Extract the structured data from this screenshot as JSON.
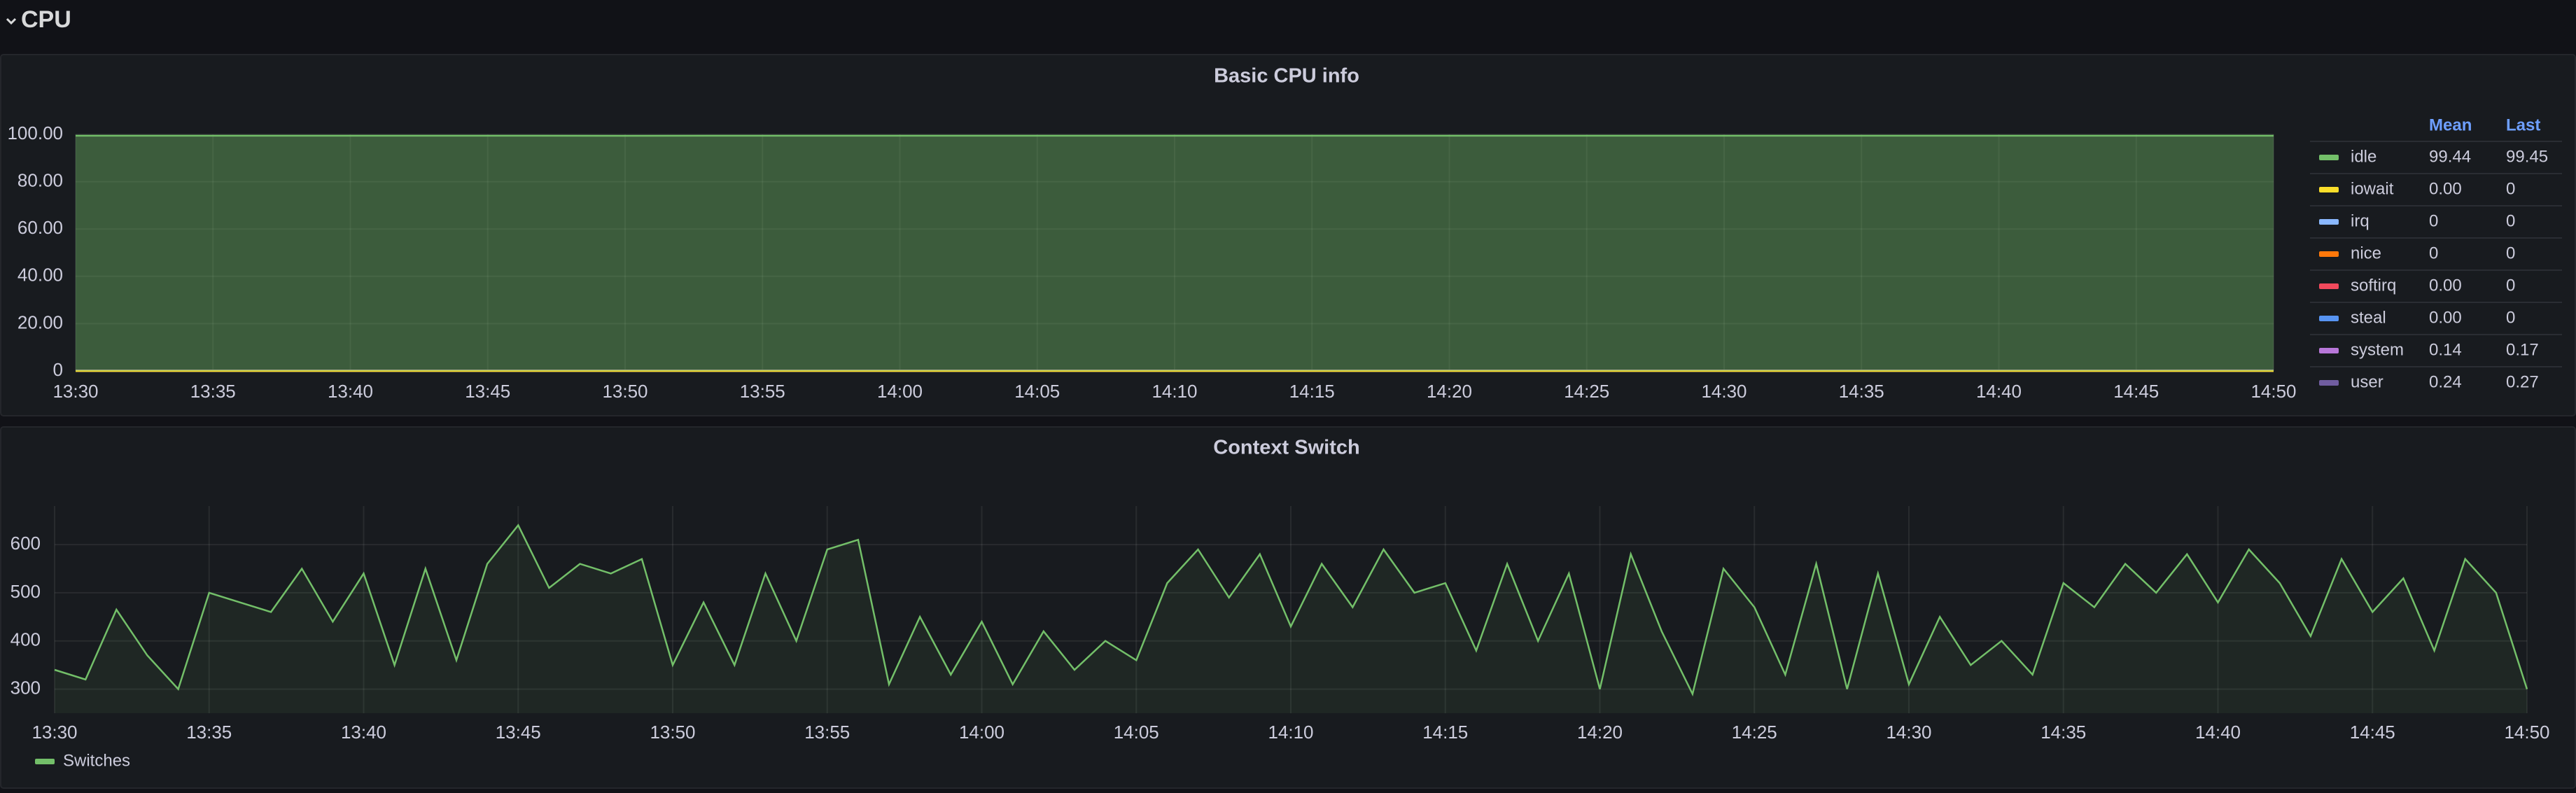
{
  "section": {
    "title": "CPU"
  },
  "chart_data": [
    {
      "type": "area",
      "title": "Basic CPU info",
      "x": [
        "13:30",
        "13:35",
        "13:40",
        "13:45",
        "13:50",
        "13:55",
        "14:00",
        "14:05",
        "14:10",
        "14:15",
        "14:20",
        "14:25",
        "14:30",
        "14:35",
        "14:40",
        "14:45",
        "14:50"
      ],
      "xticks": [
        "13:30",
        "13:35",
        "13:40",
        "13:45",
        "13:50",
        "13:55",
        "14:00",
        "14:05",
        "14:10",
        "14:15",
        "14:20",
        "14:25",
        "14:30",
        "14:35",
        "14:40",
        "14:45",
        "14:50"
      ],
      "ylim": [
        0,
        100
      ],
      "yticks": [
        0,
        {
          "value": 20,
          "label": "20.00"
        },
        {
          "value": 40,
          "label": "40.00"
        },
        {
          "value": 60,
          "label": "60.00"
        },
        {
          "value": 80,
          "label": "80.00"
        },
        {
          "value": 100,
          "label": "100.00"
        }
      ],
      "grid": true,
      "legend_position": "right",
      "legend_columns": [
        "Mean",
        "Last"
      ],
      "series": [
        {
          "name": "idle",
          "color": "#73bf69",
          "mean": "99.44",
          "last": "99.45",
          "values": [
            99.44,
            99.43,
            99.45,
            99.44,
            99.42,
            99.44,
            99.45,
            99.43,
            99.44,
            99.44,
            99.45,
            99.43,
            99.44,
            99.44,
            99.45,
            99.43,
            99.45
          ]
        },
        {
          "name": "iowait",
          "color": "#fade2a",
          "mean": "0.00",
          "last": "0",
          "values": [
            0,
            0,
            0,
            0,
            0,
            0,
            0,
            0,
            0,
            0,
            0,
            0,
            0,
            0,
            0,
            0,
            0
          ]
        },
        {
          "name": "irq",
          "color": "#8ab8ff",
          "mean": "0",
          "last": "0",
          "values": [
            0,
            0,
            0,
            0,
            0,
            0,
            0,
            0,
            0,
            0,
            0,
            0,
            0,
            0,
            0,
            0,
            0
          ]
        },
        {
          "name": "nice",
          "color": "#ff780a",
          "mean": "0",
          "last": "0",
          "values": [
            0,
            0,
            0,
            0,
            0,
            0,
            0,
            0,
            0,
            0,
            0,
            0,
            0,
            0,
            0,
            0,
            0
          ]
        },
        {
          "name": "softirq",
          "color": "#f2495c",
          "mean": "0.00",
          "last": "0",
          "values": [
            0,
            0,
            0,
            0,
            0,
            0,
            0,
            0,
            0,
            0,
            0,
            0,
            0,
            0,
            0,
            0,
            0
          ]
        },
        {
          "name": "steal",
          "color": "#5794f2",
          "mean": "0.00",
          "last": "0",
          "values": [
            0,
            0,
            0,
            0,
            0,
            0,
            0,
            0,
            0,
            0,
            0,
            0,
            0,
            0,
            0,
            0,
            0
          ]
        },
        {
          "name": "system",
          "color": "#b877d9",
          "mean": "0.14",
          "last": "0.17",
          "values": [
            0.14,
            0.13,
            0.15,
            0.14,
            0.14,
            0.13,
            0.14,
            0.15,
            0.14,
            0.13,
            0.14,
            0.14,
            0.15,
            0.14,
            0.13,
            0.14,
            0.17
          ]
        },
        {
          "name": "user",
          "color": "#705da0",
          "mean": "0.24",
          "last": "0.27",
          "values": [
            0.24,
            0.25,
            0.23,
            0.24,
            0.25,
            0.24,
            0.23,
            0.24,
            0.25,
            0.24,
            0.23,
            0.24,
            0.24,
            0.25,
            0.23,
            0.24,
            0.27
          ]
        }
      ]
    },
    {
      "type": "area",
      "title": "Context Switch",
      "x": [
        "13:30",
        "13:31",
        "13:32",
        "13:33",
        "13:34",
        "13:35",
        "13:36",
        "13:37",
        "13:38",
        "13:39",
        "13:40",
        "13:41",
        "13:42",
        "13:43",
        "13:44",
        "13:45",
        "13:46",
        "13:47",
        "13:48",
        "13:49",
        "13:50",
        "13:51",
        "13:52",
        "13:53",
        "13:54",
        "13:55",
        "13:56",
        "13:57",
        "13:58",
        "13:59",
        "14:00",
        "14:01",
        "14:02",
        "14:03",
        "14:04",
        "14:05",
        "14:06",
        "14:07",
        "14:08",
        "14:09",
        "14:10",
        "14:11",
        "14:12",
        "14:13",
        "14:14",
        "14:15",
        "14:16",
        "14:17",
        "14:18",
        "14:19",
        "14:20",
        "14:21",
        "14:22",
        "14:23",
        "14:24",
        "14:25",
        "14:26",
        "14:27",
        "14:28",
        "14:29",
        "14:30",
        "14:31",
        "14:32",
        "14:33",
        "14:34",
        "14:35",
        "14:36",
        "14:37",
        "14:38",
        "14:39",
        "14:40",
        "14:41",
        "14:42",
        "14:43",
        "14:44",
        "14:45",
        "14:46",
        "14:47",
        "14:48",
        "14:49",
        "14:50"
      ],
      "xticks": [
        "13:30",
        "13:35",
        "13:40",
        "13:45",
        "13:50",
        "13:55",
        "14:00",
        "14:05",
        "14:10",
        "14:15",
        "14:20",
        "14:25",
        "14:30",
        "14:35",
        "14:40",
        "14:45",
        "14:50"
      ],
      "ylim": [
        250,
        680
      ],
      "yticks": [
        300,
        400,
        500,
        600
      ],
      "grid": true,
      "legend_position": "bottom",
      "series": [
        {
          "name": "Switches",
          "color": "#73bf69",
          "values": [
            340,
            320,
            465,
            370,
            300,
            500,
            480,
            460,
            550,
            440,
            540,
            350,
            550,
            360,
            560,
            640,
            510,
            560,
            540,
            570,
            350,
            480,
            350,
            540,
            400,
            590,
            610,
            310,
            450,
            330,
            440,
            310,
            420,
            340,
            400,
            360,
            520,
            590,
            490,
            580,
            430,
            560,
            470,
            590,
            500,
            520,
            380,
            560,
            400,
            540,
            300,
            580,
            420,
            290,
            550,
            470,
            330,
            560,
            300,
            540,
            310,
            450,
            350,
            400,
            330,
            520,
            470,
            560,
            500,
            580,
            480,
            590,
            520,
            410,
            570,
            460,
            530,
            380,
            570,
            500,
            300
          ]
        }
      ]
    }
  ]
}
